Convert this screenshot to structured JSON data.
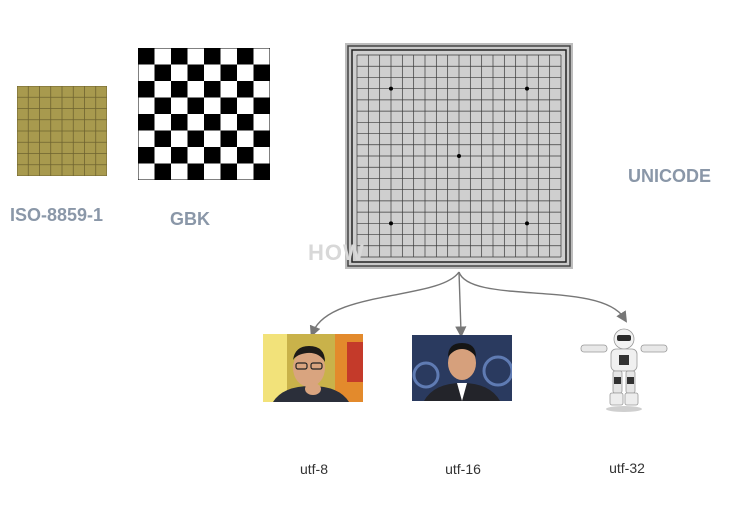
{
  "charsets": {
    "iso": {
      "label": "ISO-8859-1"
    },
    "gbk": {
      "label": "GBK"
    },
    "unicode": {
      "label": "UNICODE"
    }
  },
  "watermark": "HOW",
  "encodings": [
    {
      "label": "utf-8"
    },
    {
      "label": "utf-16"
    },
    {
      "label": "utf-32"
    }
  ],
  "colors": {
    "label": "#8a97a8",
    "iso_fill": "#a89a4e",
    "iso_grid": "#6e6330",
    "go_board": "#c8c8c8",
    "arrow": "#777777"
  }
}
